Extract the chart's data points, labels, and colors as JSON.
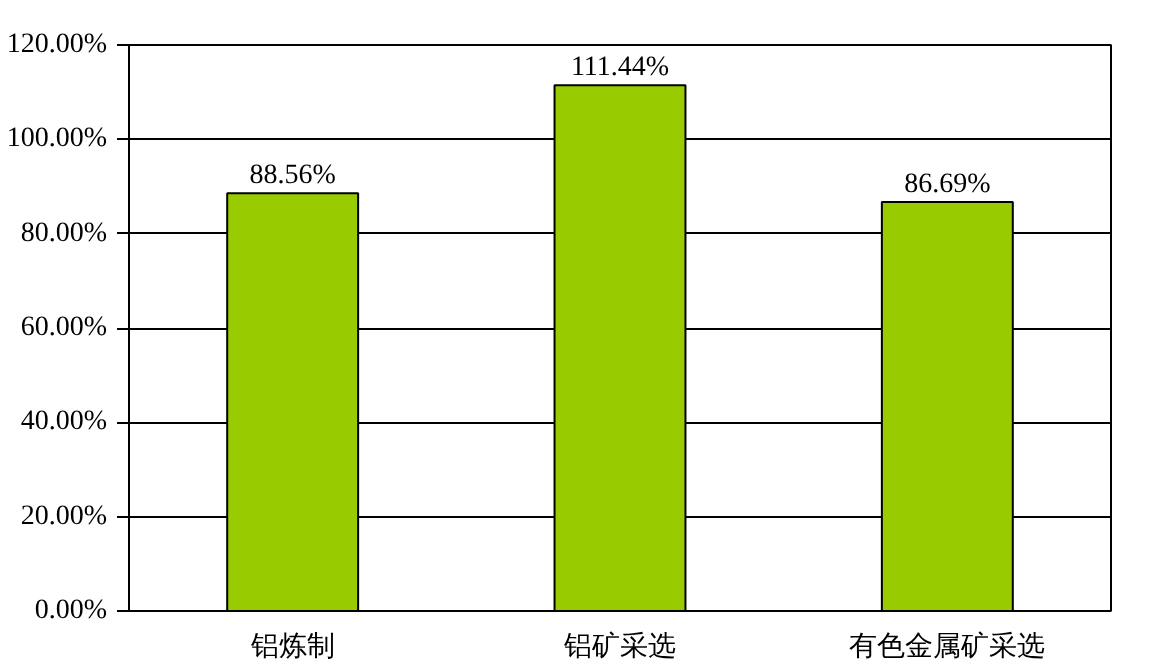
{
  "chart_data": {
    "type": "bar",
    "categories": [
      "铝炼制",
      "铝矿采选",
      "有色金属矿采选"
    ],
    "values": [
      88.56,
      111.44,
      86.69
    ],
    "color": "#99cc00",
    "value_labels": [
      "88.56%",
      "111.44%",
      "86.69%"
    ],
    "ylim": [
      0,
      120
    ],
    "yticks": [
      {
        "value": 0,
        "label": "0.00%"
      },
      {
        "value": 20,
        "label": "20.00%"
      },
      {
        "value": 40,
        "label": "40.00%"
      },
      {
        "value": 60,
        "label": "60.00%"
      },
      {
        "value": 80,
        "label": "80.00%"
      },
      {
        "value": 100,
        "label": "100.00%"
      },
      {
        "value": 120,
        "label": "120.00%"
      }
    ],
    "grid": "y"
  }
}
